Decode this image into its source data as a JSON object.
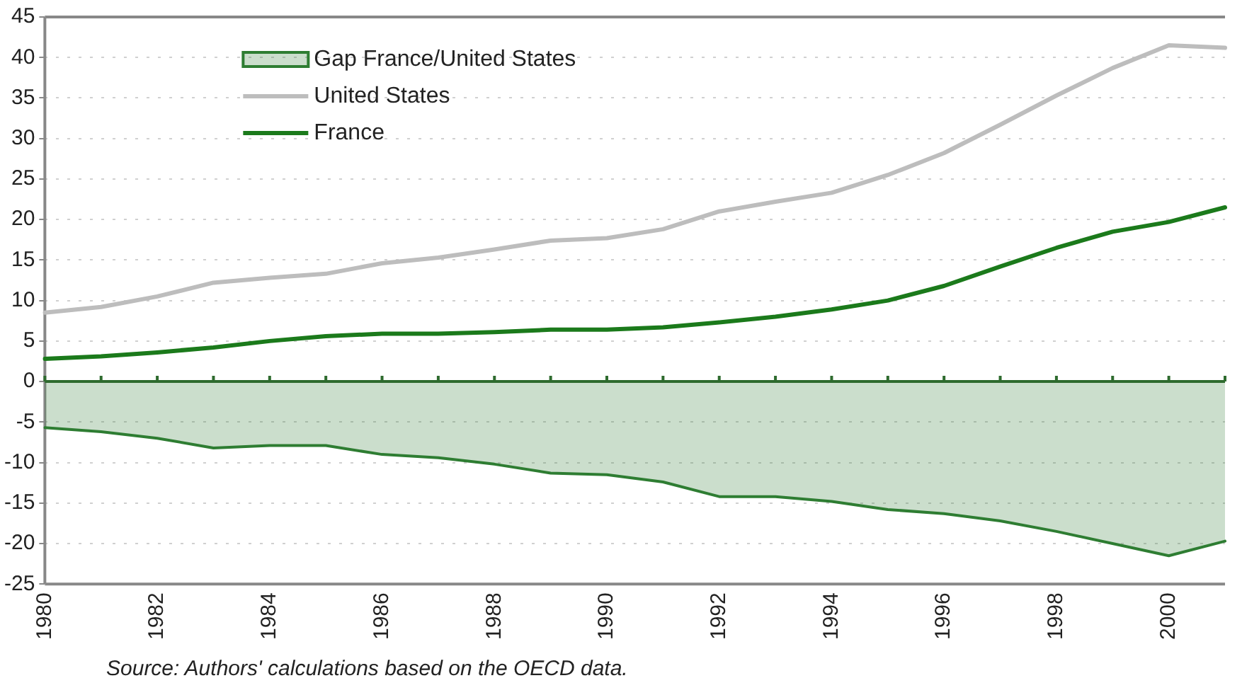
{
  "chart_data": {
    "type": "line",
    "categories": [
      "1980",
      null,
      "1982",
      null,
      "1984",
      null,
      "1986",
      null,
      "1988",
      null,
      "1990",
      null,
      "1992",
      null,
      "1994",
      null,
      "1996",
      null,
      "1998",
      null,
      "2000",
      null
    ],
    "series": [
      {
        "name": "Gap France/United States",
        "type": "area",
        "color": "#2e7d32",
        "values": [
          -5.7,
          -6.2,
          -7.0,
          -8.2,
          -7.9,
          -7.9,
          -9.0,
          -9.4,
          -10.2,
          -11.3,
          -11.5,
          -12.4,
          -14.2,
          -14.2,
          -14.8,
          -15.8,
          -16.3,
          -17.2,
          -18.5,
          -20.0,
          -21.5,
          -19.7
        ]
      },
      {
        "name": "United States",
        "color": "#bdbdbd",
        "values": [
          8.5,
          9.2,
          10.5,
          12.2,
          12.8,
          13.3,
          14.6,
          15.3,
          16.3,
          17.4,
          17.7,
          18.8,
          21.0,
          22.2,
          23.3,
          25.5,
          28.2,
          31.7,
          35.3,
          38.7,
          41.5,
          41.2
        ]
      },
      {
        "name": "France",
        "color": "#1b7a1b",
        "values": [
          2.8,
          3.1,
          3.6,
          4.2,
          5.0,
          5.6,
          5.9,
          5.9,
          6.1,
          6.4,
          6.4,
          6.7,
          7.3,
          8.0,
          8.9,
          10.0,
          11.8,
          14.2,
          16.5,
          18.5,
          19.7,
          21.5
        ]
      }
    ],
    "ylim": [
      -25,
      45
    ],
    "yticks": [
      -25,
      -20,
      -15,
      -10,
      -5,
      0,
      5,
      10,
      15,
      20,
      25,
      30,
      35,
      40,
      45
    ],
    "grid": "y",
    "legend": "top left",
    "ref_lines": [
      {
        "axis": "y",
        "value": 0,
        "color": "#2e6b2e"
      }
    ],
    "annotations": [
      "Source: Authors' calculations based on the OECD data."
    ]
  }
}
